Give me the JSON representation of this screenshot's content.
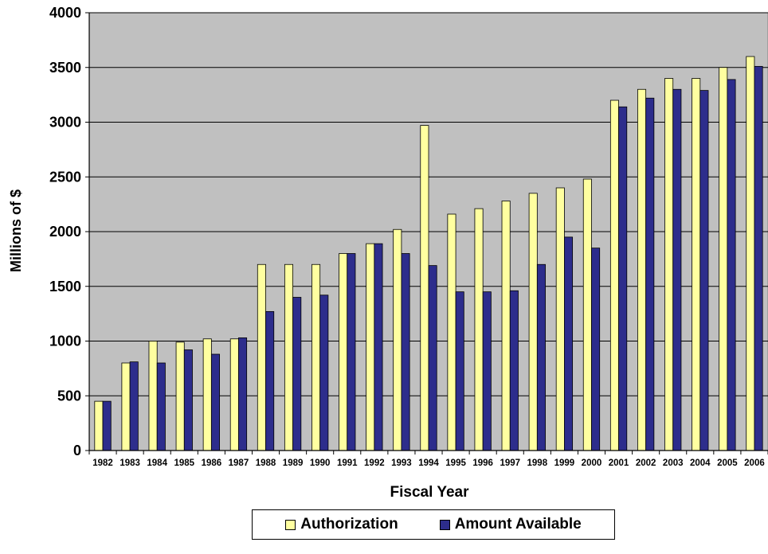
{
  "chart_data": {
    "type": "bar",
    "title": "",
    "xlabel": "Fiscal Year",
    "ylabel": "Millions of $",
    "ylim": [
      0,
      4000
    ],
    "yticks": [
      "0",
      "500",
      "1000",
      "1500",
      "2000",
      "2500",
      "3000",
      "3500",
      "4000"
    ],
    "ytick_values": [
      0,
      500,
      1000,
      1500,
      2000,
      2500,
      3000,
      3500,
      4000
    ],
    "grid": true,
    "legend_position": "bottom",
    "plot_background": "#c0c0c0",
    "categories": [
      "1982",
      "1983",
      "1984",
      "1985",
      "1986",
      "1987",
      "1988",
      "1989",
      "1990",
      "1991",
      "1992",
      "1993",
      "1994",
      "1995",
      "1996",
      "1997",
      "1998",
      "1999",
      "2000",
      "2001",
      "2002",
      "2003",
      "2004",
      "2005",
      "2006"
    ],
    "series": [
      {
        "name": "Authorization",
        "color": "#ffffa0",
        "values": [
          450,
          800,
          1000,
          990,
          1020,
          1020,
          1700,
          1700,
          1700,
          1800,
          1890,
          2020,
          2970,
          2160,
          2210,
          2280,
          2350,
          2400,
          2480,
          3200,
          3300,
          3400,
          3400,
          3500,
          3600
        ]
      },
      {
        "name": "Amount Available",
        "color": "#2d2d8c",
        "values": [
          450,
          810,
          800,
          920,
          880,
          1030,
          1270,
          1400,
          1420,
          1800,
          1890,
          1800,
          1690,
          1450,
          1450,
          1460,
          1700,
          1950,
          1850,
          3140,
          3220,
          3300,
          3290,
          3390,
          3510
        ]
      }
    ]
  }
}
